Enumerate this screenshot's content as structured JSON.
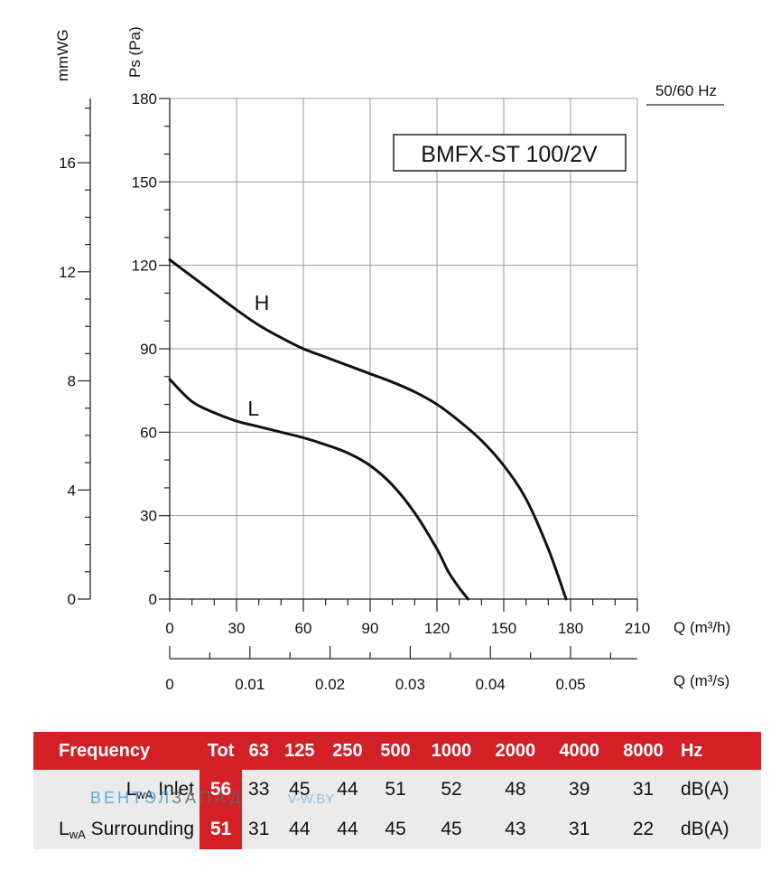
{
  "chart_data": {
    "type": "line",
    "model_label": "BMFX-ST 100/2V",
    "frequency_label": "50/60 Hz",
    "y_axis_pa": {
      "label": "Ps (Pa)",
      "ticks": [
        "0",
        "30",
        "60",
        "90",
        "120",
        "150",
        "180"
      ],
      "ylim": [
        0,
        180
      ]
    },
    "y_axis_mmwg": {
      "label": "mmWG",
      "ticks": [
        "0",
        "4",
        "8",
        "12",
        "16"
      ]
    },
    "x_axis_m3h": {
      "label": "Q (m³/h)",
      "ticks": [
        "0",
        "30",
        "60",
        "90",
        "120",
        "150",
        "180",
        "210"
      ],
      "xlim": [
        0,
        210
      ]
    },
    "x_axis_m3s": {
      "label": "Q (m³/s)",
      "ticks": [
        "0",
        "0.01",
        "0.02",
        "0.03",
        "0.04",
        "0.05"
      ]
    },
    "grid": true,
    "series": [
      {
        "name": "H",
        "x": [
          0,
          10,
          20,
          30,
          40,
          50,
          60,
          70,
          80,
          90,
          100,
          110,
          120,
          130,
          140,
          150,
          160,
          170,
          178
        ],
        "y": [
          122,
          116,
          110,
          104,
          98.5,
          94,
          90,
          87,
          84,
          81,
          78,
          74.5,
          70,
          64,
          57,
          48,
          36,
          18,
          0
        ]
      },
      {
        "name": "L",
        "x": [
          0,
          10,
          20,
          30,
          40,
          50,
          60,
          70,
          80,
          90,
          100,
          110,
          120,
          125,
          130,
          134
        ],
        "y": [
          79,
          71,
          67,
          64,
          62,
          60,
          58,
          55.5,
          52.5,
          48,
          41,
          31,
          18,
          10,
          4,
          0
        ]
      }
    ]
  },
  "table": {
    "header": [
      "Frequency",
      "Tot",
      "63",
      "125",
      "250",
      "500",
      "1000",
      "2000",
      "4000",
      "8000",
      "Hz"
    ],
    "rows": [
      {
        "label_main": "L",
        "label_sub": "wA",
        "label_rest": " Inlet",
        "values": [
          "56",
          "33",
          "45",
          "44",
          "51",
          "52",
          "48",
          "39",
          "31"
        ],
        "unit": "dB(A)"
      },
      {
        "label_main": "L",
        "label_sub": "wA",
        "label_rest": " Surrounding",
        "values": [
          "51",
          "31",
          "44",
          "44",
          "45",
          "45",
          "43",
          "31",
          "22"
        ],
        "unit": "dB(A)"
      }
    ]
  },
  "watermark": {
    "part1": "ВЕНТЭЛ",
    "part2": "ЗАПАД",
    "part3": "V-W.BY"
  }
}
